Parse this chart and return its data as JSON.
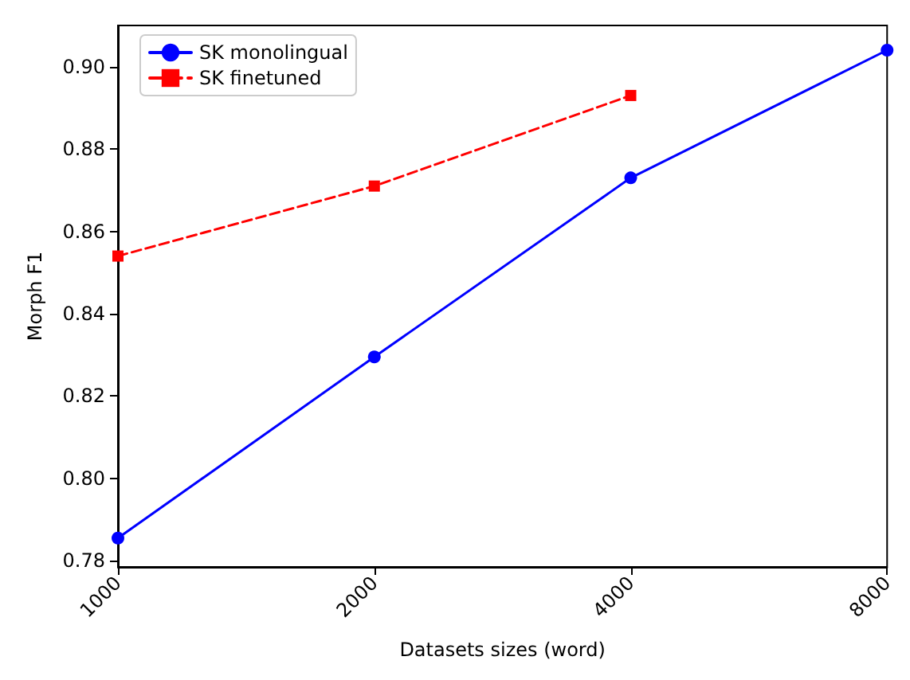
{
  "chart_data": {
    "type": "line",
    "xlabel": "Datasets sizes (word)",
    "ylabel": "Morph F1",
    "categories": [
      "1000",
      "2000",
      "4000",
      "8000"
    ],
    "series": [
      {
        "name": "SK monolingual",
        "color": "#0000ff",
        "values": [
          0.7855,
          0.8295,
          0.873,
          0.904
        ],
        "marker": "circle",
        "line_style": "solid"
      },
      {
        "name": "SK finetuned",
        "color": "#ff0000",
        "values": [
          0.854,
          0.871,
          0.893,
          null
        ],
        "marker": "square",
        "line_style": "dashed"
      }
    ],
    "ylim": [
      0.7785,
      0.91
    ],
    "yticks": [
      0.78,
      {
        "value": 0.8,
        "label": "0.80"
      },
      0.82,
      0.84,
      0.86,
      0.88,
      {
        "value": 0.9,
        "label": "0.90"
      }
    ],
    "grid": false,
    "legend": "top left"
  }
}
